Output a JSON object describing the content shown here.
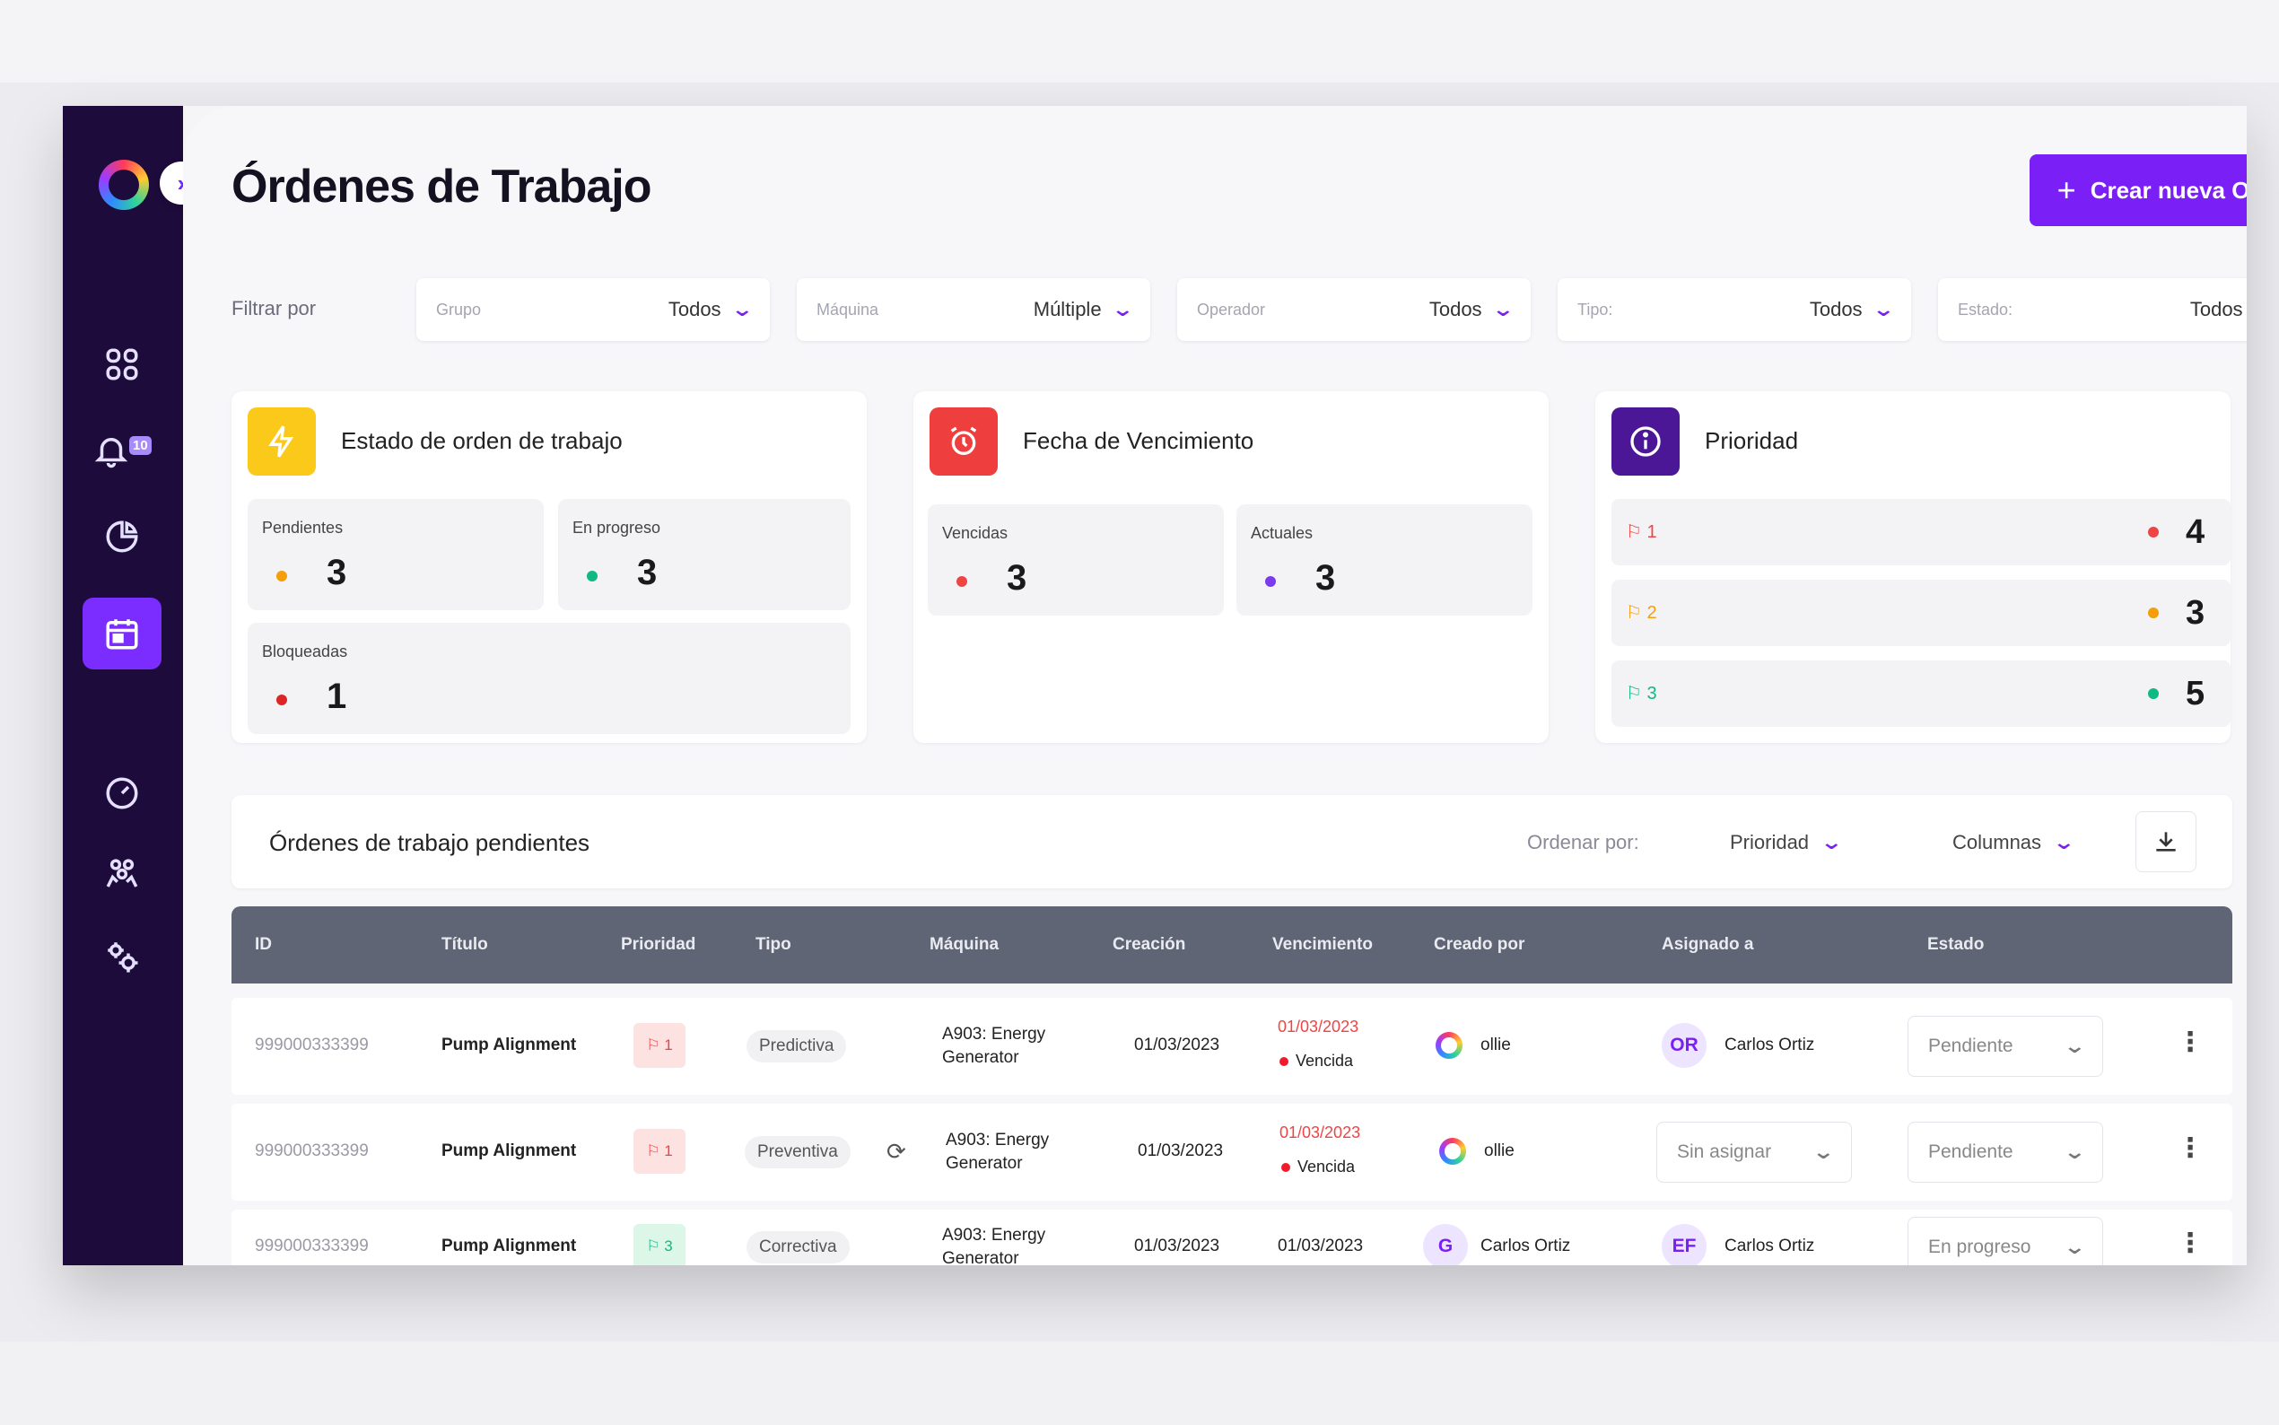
{
  "app": {
    "title": "Órdenes de Trabajo",
    "create_button": "Crear nueva OT",
    "notifications_badge": "10",
    "accent_color": "#7a1ff5"
  },
  "sidebar": {
    "items": [
      {
        "icon": "dashboard-grid-icon",
        "active": false
      },
      {
        "icon": "bell-icon",
        "active": false
      },
      {
        "icon": "pie-chart-icon",
        "active": false
      },
      {
        "icon": "diamond-icon",
        "active": false
      },
      {
        "icon": "calendar-icon",
        "active": true
      },
      {
        "icon": "gauge-icon",
        "active": false
      },
      {
        "icon": "team-icon",
        "active": false
      },
      {
        "icon": "settings-gears-icon",
        "active": false
      }
    ]
  },
  "filters": {
    "label": "Filtrar por",
    "items": [
      {
        "name": "Grupo",
        "value": "Todos"
      },
      {
        "name": "Máquina",
        "value": "Múltiple"
      },
      {
        "name": "Operador",
        "value": "Todos"
      },
      {
        "name": "Tipo:",
        "value": "Todos"
      },
      {
        "name": "Estado:",
        "value": "Todos"
      }
    ]
  },
  "cards": {
    "estado": {
      "title": "Estado de orden de trabajo",
      "stats": [
        {
          "label": "Pendientes",
          "value": "3",
          "color": "#f59e0b"
        },
        {
          "label": "En progreso",
          "value": "3",
          "color": "#10b981"
        },
        {
          "label": "Bloqueadas",
          "value": "1",
          "color": "#dc2626"
        }
      ]
    },
    "vencimiento": {
      "title": "Fecha de Vencimiento",
      "stats": [
        {
          "label": "Vencidas",
          "value": "3",
          "color": "#ef4444"
        },
        {
          "label": "Actuales",
          "value": "3",
          "color": "#7c3aed"
        }
      ]
    },
    "prioridad": {
      "title": "Prioridad",
      "rows": [
        {
          "flag": "1",
          "value": "4",
          "color": "#ef4444"
        },
        {
          "flag": "2",
          "value": "3",
          "color": "#f59e0b"
        },
        {
          "flag": "3",
          "value": "5",
          "color": "#10b981"
        }
      ]
    }
  },
  "list": {
    "title": "Órdenes de trabajo pendientes",
    "sort_label": "Ordenar por:",
    "sort_value": "Prioridad",
    "columns_label": "Columnas"
  },
  "table": {
    "headers": [
      "ID",
      "Título",
      "Prioridad",
      "Tipo",
      "Máquina",
      "Creación",
      "Vencimiento",
      "Creado por",
      "Asignado a",
      "Estado"
    ],
    "rows": [
      {
        "id": "999000333399",
        "title": "Pump Alignment",
        "priority": "1",
        "type": "Predictiva",
        "machine_1": "A903: Energy",
        "machine_2": "Generator",
        "created": "01/03/2023",
        "due": "01/03/2023",
        "due_state": "Vencida",
        "creator": "ollie",
        "assignee_initials": "OR",
        "assignee": "Carlos Ortiz",
        "status": "Pendiente"
      },
      {
        "id": "999000333399",
        "title": "Pump Alignment",
        "priority": "1",
        "type": "Preventiva",
        "machine_1": "A903: Energy",
        "machine_2": "Generator",
        "created": "01/03/2023",
        "due": "01/03/2023",
        "due_state": "Vencida",
        "creator": "ollie",
        "assignee_select": "Sin asignar",
        "status": "Pendiente"
      },
      {
        "id": "999000333399",
        "title": "Pump Alignment",
        "priority": "3",
        "type": "Correctiva",
        "machine_1": "A903: Energy",
        "machine_2": "Generator",
        "created": "01/03/2023",
        "due": "01/03/2023",
        "creator_initials": "G",
        "creator": "Carlos Ortiz",
        "assignee_initials": "EF",
        "assignee": "Carlos Ortiz",
        "status": "En progreso"
      }
    ]
  }
}
